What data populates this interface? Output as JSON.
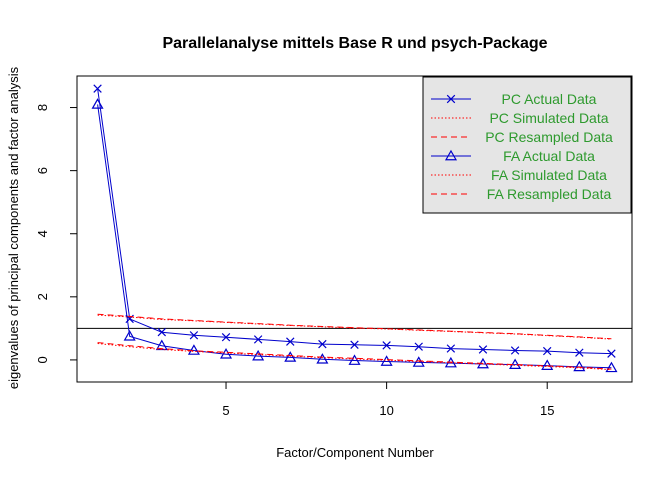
{
  "chart_data": {
    "type": "line",
    "title": "Parallelanalyse mittels Base R und psych-Package",
    "xlabel": "Factor/Component Number",
    "ylabel": "eigenvalues of principal components and factor analysis",
    "xlim": [
      0.36,
      17.64
    ],
    "ylim": [
      -0.7,
      9.0
    ],
    "x_ticks": [
      5,
      10,
      15
    ],
    "y_ticks": [
      0,
      2,
      4,
      6,
      8
    ],
    "x": [
      1,
      2,
      3,
      4,
      5,
      6,
      7,
      8,
      9,
      10,
      11,
      12,
      13,
      14,
      15,
      16,
      17
    ],
    "reference_line": {
      "y": 1
    },
    "legend_position": "top-right",
    "series": [
      {
        "name": "PC  Actual Data",
        "color": "#0000cc",
        "line": "solid",
        "marker": "x",
        "values": [
          8.6,
          1.3,
          0.88,
          0.78,
          0.72,
          0.65,
          0.58,
          0.5,
          0.48,
          0.46,
          0.42,
          0.36,
          0.33,
          0.3,
          0.28,
          0.23,
          0.2
        ]
      },
      {
        "name": "PC  Simulated Data",
        "color": "#ff0000",
        "line": "dotted",
        "marker": "",
        "values": [
          1.42,
          1.36,
          1.28,
          1.24,
          1.19,
          1.14,
          1.09,
          1.05,
          1.01,
          0.98,
          0.94,
          0.9,
          0.86,
          0.82,
          0.77,
          0.72,
          0.66
        ]
      },
      {
        "name": "PC  Resampled Data",
        "color": "#ff0000",
        "line": "dashed",
        "marker": "",
        "values": [
          1.45,
          1.38,
          1.3,
          1.25,
          1.2,
          1.15,
          1.1,
          1.06,
          1.02,
          0.99,
          0.95,
          0.91,
          0.87,
          0.83,
          0.78,
          0.73,
          0.67
        ]
      },
      {
        "name": "FA  Actual Data",
        "color": "#0000cc",
        "line": "solid",
        "marker": "triangle",
        "values": [
          8.1,
          0.75,
          0.45,
          0.3,
          0.18,
          0.12,
          0.08,
          0.02,
          -0.02,
          -0.05,
          -0.08,
          -0.1,
          -0.13,
          -0.15,
          -0.18,
          -0.22,
          -0.25
        ]
      },
      {
        "name": "FA  Simulated Data",
        "color": "#ff0000",
        "line": "dotted",
        "marker": "",
        "values": [
          0.52,
          0.42,
          0.33,
          0.27,
          0.22,
          0.17,
          0.12,
          0.07,
          0.03,
          -0.01,
          -0.05,
          -0.09,
          -0.13,
          -0.17,
          -0.21,
          -0.25,
          -0.31
        ]
      },
      {
        "name": "FA  Resampled Data",
        "color": "#ff0000",
        "line": "dashed",
        "marker": "",
        "values": [
          0.55,
          0.45,
          0.36,
          0.29,
          0.24,
          0.19,
          0.14,
          0.09,
          0.05,
          0.01,
          -0.03,
          -0.07,
          -0.11,
          -0.15,
          -0.19,
          -0.23,
          -0.29
        ]
      }
    ]
  }
}
